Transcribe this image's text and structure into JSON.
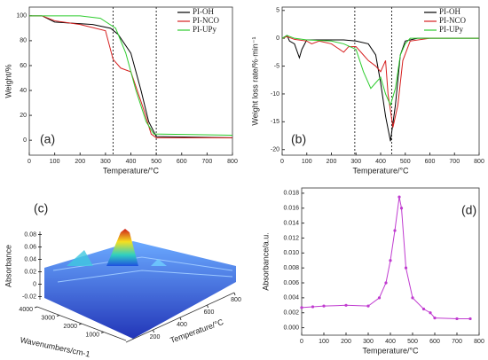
{
  "chart_data": [
    {
      "type": "line",
      "panel_label": "(a)",
      "xlabel": "Temperature/°C",
      "ylabel": "Weight/%",
      "xlim": [
        0,
        800
      ],
      "xticks": [
        0,
        100,
        200,
        300,
        400,
        500,
        600,
        700,
        800
      ],
      "ylim": [
        -12,
        107
      ],
      "yticks": [
        0,
        20,
        40,
        60,
        80,
        100
      ],
      "vlines": [
        330,
        500
      ],
      "legend": "upper right",
      "series": [
        {
          "name": "PI-OH",
          "color": "#000000",
          "x": [
            0,
            50,
            100,
            250,
            320,
            350,
            400,
            440,
            470,
            500,
            800
          ],
          "values": [
            100,
            100,
            95,
            93,
            90,
            85,
            70,
            40,
            15,
            3,
            2
          ]
        },
        {
          "name": "PI-NCO",
          "color": "#d62020",
          "x": [
            0,
            50,
            100,
            200,
            300,
            330,
            360,
            400,
            450,
            480,
            500,
            800
          ],
          "values": [
            100,
            100,
            96,
            93,
            88,
            65,
            58,
            55,
            25,
            5,
            2,
            2
          ]
        },
        {
          "name": "PI-UPy",
          "color": "#2ecc2e",
          "x": [
            0,
            200,
            280,
            340,
            380,
            420,
            460,
            490,
            800
          ],
          "values": [
            100,
            100,
            98,
            90,
            70,
            40,
            15,
            5,
            4
          ]
        }
      ]
    },
    {
      "type": "line",
      "panel_label": "(b)",
      "xlabel": "Temperature/°C",
      "ylabel": "Weight loss rate/%·min⁻¹",
      "xlim": [
        0,
        800
      ],
      "xticks": [
        0,
        100,
        200,
        300,
        400,
        500,
        600,
        700,
        800
      ],
      "ylim": [
        -21,
        5.6
      ],
      "yticks": [
        5,
        0,
        -5,
        -10,
        -15,
        -20
      ],
      "vlines": [
        295,
        445
      ],
      "legend": "upper right",
      "series": [
        {
          "name": "PI-OH",
          "color": "#000000",
          "x": [
            0,
            20,
            30,
            50,
            70,
            80,
            100,
            150,
            200,
            250,
            300,
            350,
            380,
            400,
            420,
            440,
            460,
            480,
            500,
            550,
            600,
            800
          ],
          "values": [
            0,
            0.5,
            -0.5,
            -1,
            -3.5,
            -2,
            -0.3,
            -0.3,
            -0.3,
            -0.3,
            -0.5,
            -1,
            -3,
            -8,
            -14,
            -18.5,
            -12,
            -3,
            -0.5,
            0,
            0,
            0
          ]
        },
        {
          "name": "PI-NCO",
          "color": "#d62020",
          "x": [
            0,
            20,
            50,
            100,
            120,
            150,
            200,
            250,
            270,
            300,
            330,
            350,
            380,
            400,
            420,
            430,
            450,
            470,
            490,
            520,
            600,
            800
          ],
          "values": [
            0,
            0.3,
            -0.2,
            -0.5,
            -1,
            -0.5,
            -1,
            -2.5,
            -1.5,
            -1.5,
            -3,
            -4,
            -5,
            -6,
            -4,
            -10,
            -16,
            -12,
            -4,
            -0.5,
            0,
            0
          ]
        },
        {
          "name": "PI-UPy",
          "color": "#2ecc2e",
          "x": [
            0,
            20,
            50,
            100,
            200,
            250,
            300,
            330,
            360,
            380,
            400,
            420,
            440,
            460,
            480,
            500,
            520,
            600,
            800
          ],
          "values": [
            0,
            0.5,
            0,
            -0.3,
            -0.5,
            -1,
            -2,
            -6,
            -9,
            -8,
            -7,
            -10,
            -12,
            -9,
            -3,
            -1,
            0,
            0,
            0
          ]
        }
      ]
    },
    {
      "type": "surface3d",
      "panel_label": "(c)",
      "zlabel": "Absorbance",
      "xlabel": "Wavenumbers/cm-1",
      "ylabel": "Temperature/°C",
      "zlim": [
        -0.025,
        0.085
      ],
      "zticks": [
        0.08,
        0.06,
        0.04,
        0.02,
        0,
        -0.02
      ],
      "xlim": [
        4000,
        0
      ],
      "xticks": [
        4000,
        3000,
        2000,
        1000
      ],
      "ylim": [
        0,
        800
      ],
      "yticks": [
        200,
        400,
        600,
        800
      ]
    },
    {
      "type": "line",
      "panel_label": "(d)",
      "xlabel": "Temperature/°C",
      "ylabel": "Absorbance/a.u.",
      "markers": true,
      "xlim": [
        0,
        800
      ],
      "xticks": [
        0,
        100,
        200,
        300,
        400,
        500,
        600,
        700,
        800
      ],
      "ylim": [
        -0.001,
        0.0187
      ],
      "yticks": [
        {
          "value": 0,
          "label": "0.000"
        },
        {
          "value": 0.002,
          "label": "0.002"
        },
        {
          "value": 0.004,
          "label": "0.004"
        },
        {
          "value": 0.006,
          "label": "0.006"
        },
        {
          "value": 0.008,
          "label": "0.008"
        },
        {
          "value": 0.01,
          "label": "0.010"
        },
        {
          "value": 0.012,
          "label": "0.012"
        },
        {
          "value": 0.014,
          "label": "0.014"
        },
        {
          "value": 0.016,
          "label": "0.016"
        },
        {
          "value": 0.018,
          "label": "0.018"
        }
      ],
      "series": [
        {
          "color": "#c03cd0",
          "x": [
            0,
            50,
            100,
            200,
            300,
            350,
            380,
            400,
            420,
            440,
            450,
            470,
            500,
            550,
            580,
            600,
            700,
            760
          ],
          "values": [
            0.0027,
            0.0028,
            0.0029,
            0.003,
            0.0029,
            0.004,
            0.006,
            0.009,
            0.013,
            0.0175,
            0.016,
            0.008,
            0.004,
            0.0025,
            0.002,
            0.0013,
            0.0012,
            0.0012
          ]
        }
      ]
    }
  ]
}
